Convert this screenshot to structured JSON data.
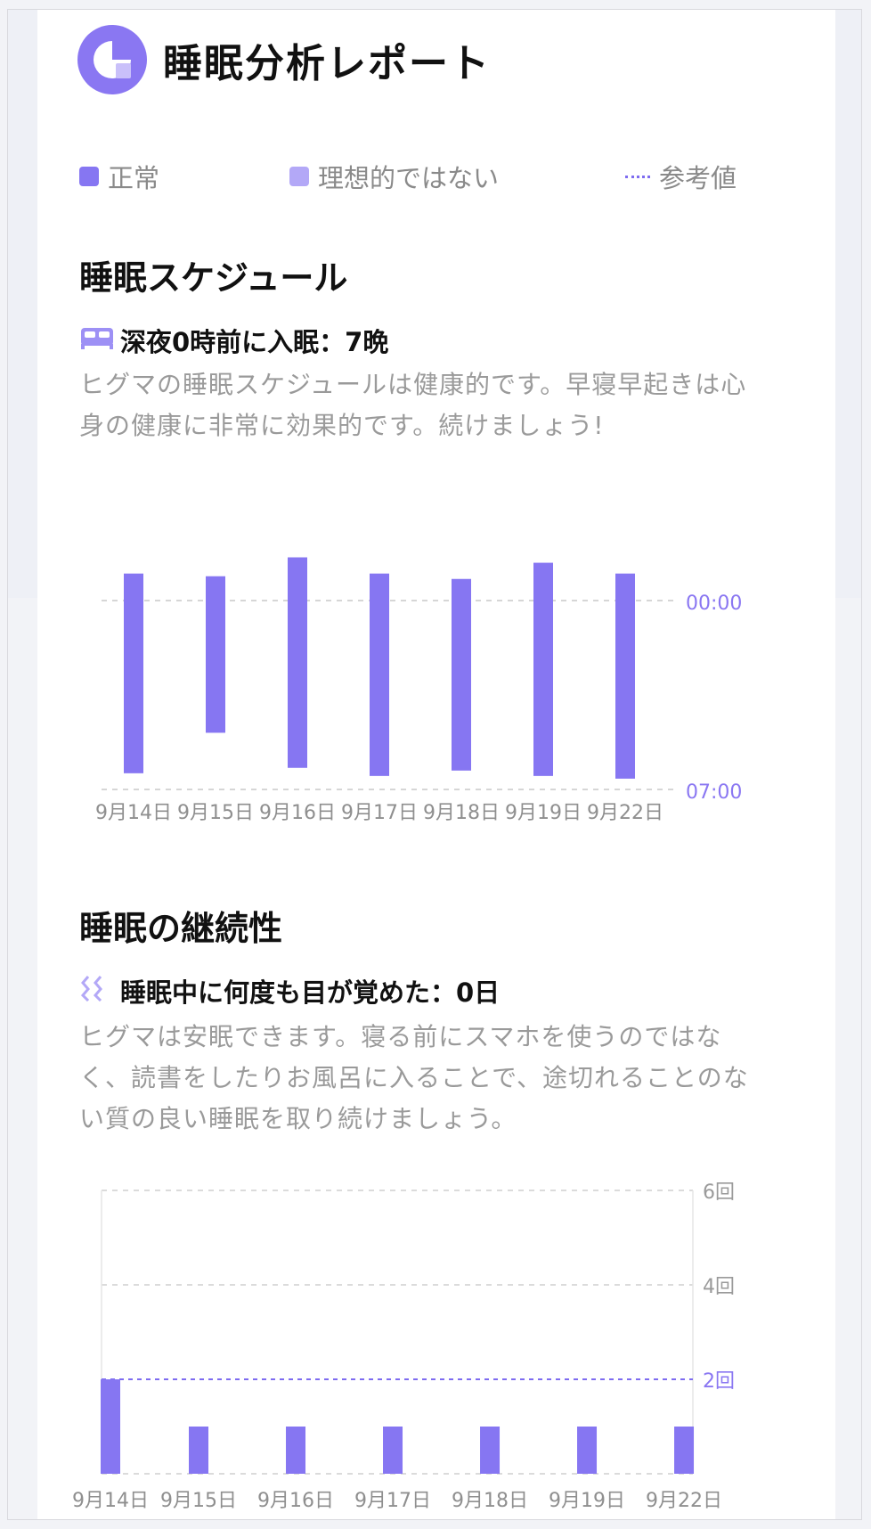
{
  "header": {
    "title": "睡眠分析レポート",
    "logo_icon": "report-logo-icon"
  },
  "legend": [
    {
      "label": "正常",
      "color": "#8676f2",
      "kind": "square"
    },
    {
      "label": "理想的ではない",
      "color": "#b3a8f7",
      "kind": "square"
    },
    {
      "label": "参考値",
      "color": "#7e6cf0",
      "kind": "dotted-line"
    }
  ],
  "schedule": {
    "title": "睡眠スケジュール",
    "subtitle": "深夜0時前に入眠：7晩",
    "subtitle_icon": "bed-icon",
    "description_lines": [
      "ヒグマの睡眠スケジュールは健康的です。早寝早起きは心",
      "身の健康に非常に効果的です。続けましょう!"
    ]
  },
  "continuity": {
    "title": "睡眠の継続性",
    "subtitle": "睡眠中に何度も目が覚めた：0日",
    "subtitle_icon": "wave-icon",
    "description_lines": [
      "ヒグマは安眠できます。寝る前にスマホを使うのではな",
      "く、読書をしたりお風呂に入ることで、途切れることのな",
      "い質の良い睡眠を取り続けましょう。"
    ]
  },
  "chart_data": [
    {
      "type": "bar",
      "subtype": "range",
      "categories": [
        "9月14日",
        "9月15日",
        "9月16日",
        "9月17日",
        "9月18日",
        "9月19日",
        "9月22日"
      ],
      "series": [
        {
          "ranges": [
            [
              -1.0,
              6.4
            ],
            [
              -0.9,
              4.9
            ],
            [
              -1.6,
              6.2
            ],
            [
              -1.0,
              6.5
            ],
            [
              -0.8,
              6.3
            ],
            [
              -1.4,
              6.5
            ],
            [
              -1.0,
              6.6
            ]
          ]
        }
      ],
      "y_tick_labels": [
        "00:00",
        "07:00"
      ],
      "y_tick_values": [
        0,
        7
      ],
      "reference_line": 0,
      "ylim": [
        -3.4,
        7
      ],
      "bar_color": "#8676f2"
    },
    {
      "type": "bar",
      "categories": [
        "9月14日",
        "9月15日",
        "9月16日",
        "9月17日",
        "9月18日",
        "9月19日",
        "9月22日"
      ],
      "values": [
        2,
        1,
        1,
        1,
        1,
        1,
        1
      ],
      "y_tick_labels": [
        "6回",
        "4回",
        "2回"
      ],
      "y_tick_values": [
        6,
        4,
        2
      ],
      "reference_line": 2,
      "ylim": [
        0,
        6
      ],
      "bar_color": "#8676f2"
    }
  ]
}
